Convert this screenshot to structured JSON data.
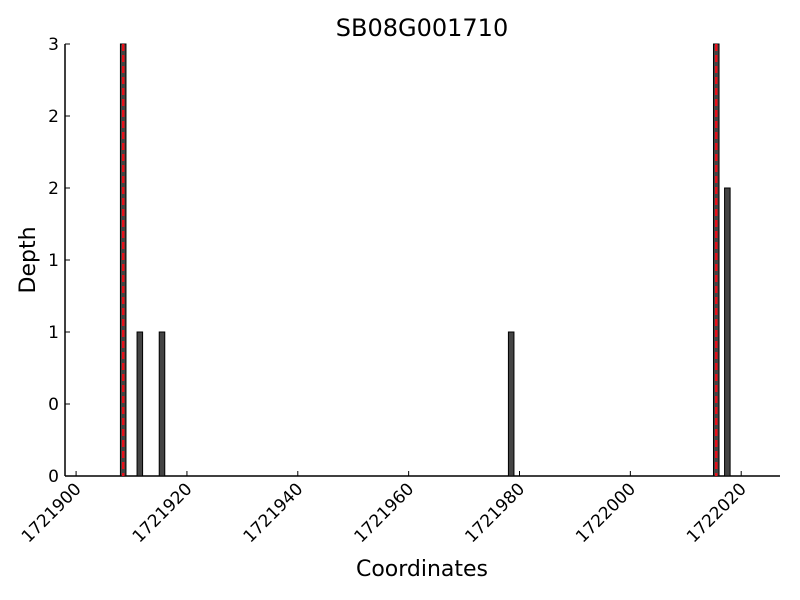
{
  "chart_data": {
    "type": "bar",
    "title": "SB08G001710",
    "x_label": "Coordinates",
    "y_label": "Depth",
    "x": [
      1721908,
      1721911,
      1721915,
      1721978,
      1722015,
      1722017
    ],
    "values": [
      3,
      1,
      1,
      1,
      3,
      2
    ],
    "color": "#444444",
    "markers": [
      1721908.5,
      1722015.5
    ],
    "marker_color": "#e8101a",
    "xlim": [
      1721898,
      1722027
    ],
    "xticks": [
      1721900,
      1721920,
      1721940,
      1721960,
      1721980,
      1722000,
      1722020
    ],
    "ylim": [
      0,
      3
    ],
    "yticks": [
      0,
      {
        "value": 0.5,
        "label": "0"
      },
      1,
      {
        "value": 1.5,
        "label": "1"
      },
      2,
      {
        "value": 2.5,
        "label": "2"
      },
      3
    ],
    "grid": false
  }
}
